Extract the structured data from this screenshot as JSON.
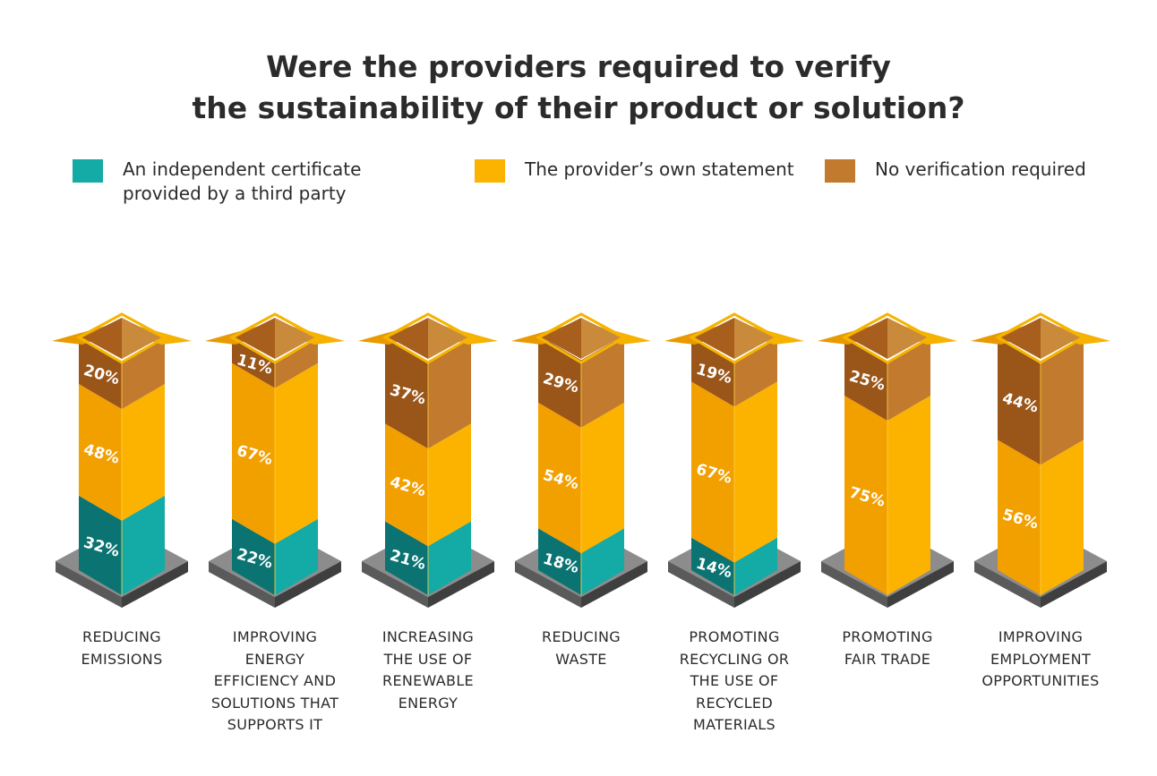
{
  "title": {
    "line1": "Were the providers required to verify",
    "line2": "the sustainability of their product or solution?"
  },
  "legend": [
    {
      "label": "An independent certificate\nprovided by a third party",
      "color": "#14aaa6"
    },
    {
      "label": "The provider’s own statement",
      "color": "#fbb300"
    },
    {
      "label": "No verification required",
      "color": "#c17a2e"
    }
  ],
  "colors": {
    "teal_front": "#14aaa6",
    "teal_side": "#0b7472",
    "yellow_front": "#fbb300",
    "yellow_side": "#f29f00",
    "brown_front": "#c17a2e",
    "brown_side": "#9a5519",
    "base_top": "#8c8c8c",
    "base_side": "#5a5a5a"
  },
  "chart_data": {
    "type": "bar",
    "stacked": true,
    "title": "Were the providers required to verify the sustainability of their product or solution?",
    "categories": [
      "Reducing\nemissions",
      "Improving\nenergy\nefficiency and\nsolutions that\nsupports it",
      "Increasing\nthe use of\nrenewable\nenergy",
      "Reducing\nwaste",
      "Promoting\nrecycling or\nthe use of\nrecycled\nmaterials",
      "Promoting\nfair trade",
      "Improving\nemployment\nopportunities"
    ],
    "series": [
      {
        "name": "An independent certificate provided by a third party",
        "values": [
          32,
          22,
          21,
          18,
          14,
          0,
          0
        ]
      },
      {
        "name": "The provider’s own statement",
        "values": [
          48,
          67,
          42,
          54,
          67,
          75,
          56
        ]
      },
      {
        "name": "No verification required",
        "values": [
          20,
          11,
          37,
          29,
          19,
          25,
          44
        ]
      }
    ],
    "value_format": "{v}%",
    "legend_position": "top",
    "grid": false
  }
}
